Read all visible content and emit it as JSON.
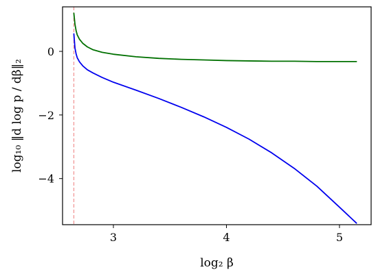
{
  "chart_data": {
    "type": "line",
    "xlabel": "log₂ β",
    "ylabel": "log₁₀ ‖d log p / dβ‖₂",
    "xlim": [
      2.55,
      5.28
    ],
    "ylim": [
      -5.45,
      1.4
    ],
    "xticks": [
      3,
      4,
      5
    ],
    "yticks": [
      0,
      -2,
      -4
    ],
    "xtick_labels": [
      "3",
      "4",
      "5"
    ],
    "ytick_labels": [
      "0",
      "−2",
      "−4"
    ],
    "vline": {
      "x": 2.65,
      "color": "#f08080",
      "style": "dashed"
    },
    "grid": false,
    "series": [
      {
        "color": "#0000ee",
        "x": [
          2.65,
          2.66,
          2.67,
          2.68,
          2.7,
          2.73,
          2.77,
          2.82,
          2.9,
          3.0,
          3.2,
          3.4,
          3.6,
          3.8,
          4.0,
          4.2,
          4.4,
          4.6,
          4.8,
          5.0,
          5.15
        ],
        "y": [
          0.55,
          0.1,
          -0.08,
          -0.2,
          -0.33,
          -0.46,
          -0.58,
          -0.68,
          -0.82,
          -0.97,
          -1.22,
          -1.48,
          -1.76,
          -2.06,
          -2.39,
          -2.76,
          -3.19,
          -3.68,
          -4.24,
          -4.9,
          -5.4
        ]
      },
      {
        "color": "#007000",
        "x": [
          2.65,
          2.66,
          2.67,
          2.68,
          2.7,
          2.73,
          2.77,
          2.82,
          2.9,
          3.0,
          3.2,
          3.4,
          3.6,
          3.8,
          4.0,
          4.2,
          4.4,
          4.6,
          4.8,
          5.0,
          5.15
        ],
        "y": [
          1.2,
          0.85,
          0.65,
          0.52,
          0.38,
          0.25,
          0.14,
          0.05,
          -0.03,
          -0.09,
          -0.17,
          -0.22,
          -0.25,
          -0.27,
          -0.29,
          -0.3,
          -0.31,
          -0.31,
          -0.32,
          -0.32,
          -0.32
        ]
      }
    ]
  }
}
